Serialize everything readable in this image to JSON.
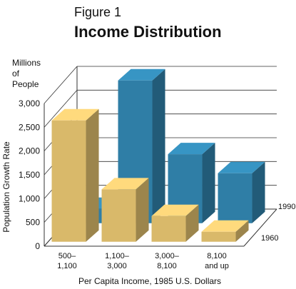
{
  "figure_label": "Figure 1",
  "chart_data": {
    "type": "bar",
    "title": "Income Distribution",
    "unit_label": [
      "Millions",
      "of",
      "People"
    ],
    "ylabel": "Population Growth Rate",
    "xlabel": "Per Capita Income,  1985 U.S. Dollars",
    "categories": [
      [
        "500–",
        "1,100"
      ],
      [
        "1,100–",
        "3,000"
      ],
      [
        "3,000–",
        "8,100"
      ],
      [
        "8,100",
        "and up"
      ]
    ],
    "ylim": [
      0,
      3000
    ],
    "y_ticks": [
      "0",
      "500",
      "1,000",
      "1,500",
      "2,000",
      "2,500",
      "3,000"
    ],
    "series": [
      {
        "name": "1960",
        "color": "#d9b96a",
        "values": [
          2550,
          1100,
          540,
          210
        ]
      },
      {
        "name": "1990",
        "color": "#2f7ea6",
        "values": [
          300,
          3000,
          1450,
          1050
        ]
      }
    ],
    "grid": true
  }
}
